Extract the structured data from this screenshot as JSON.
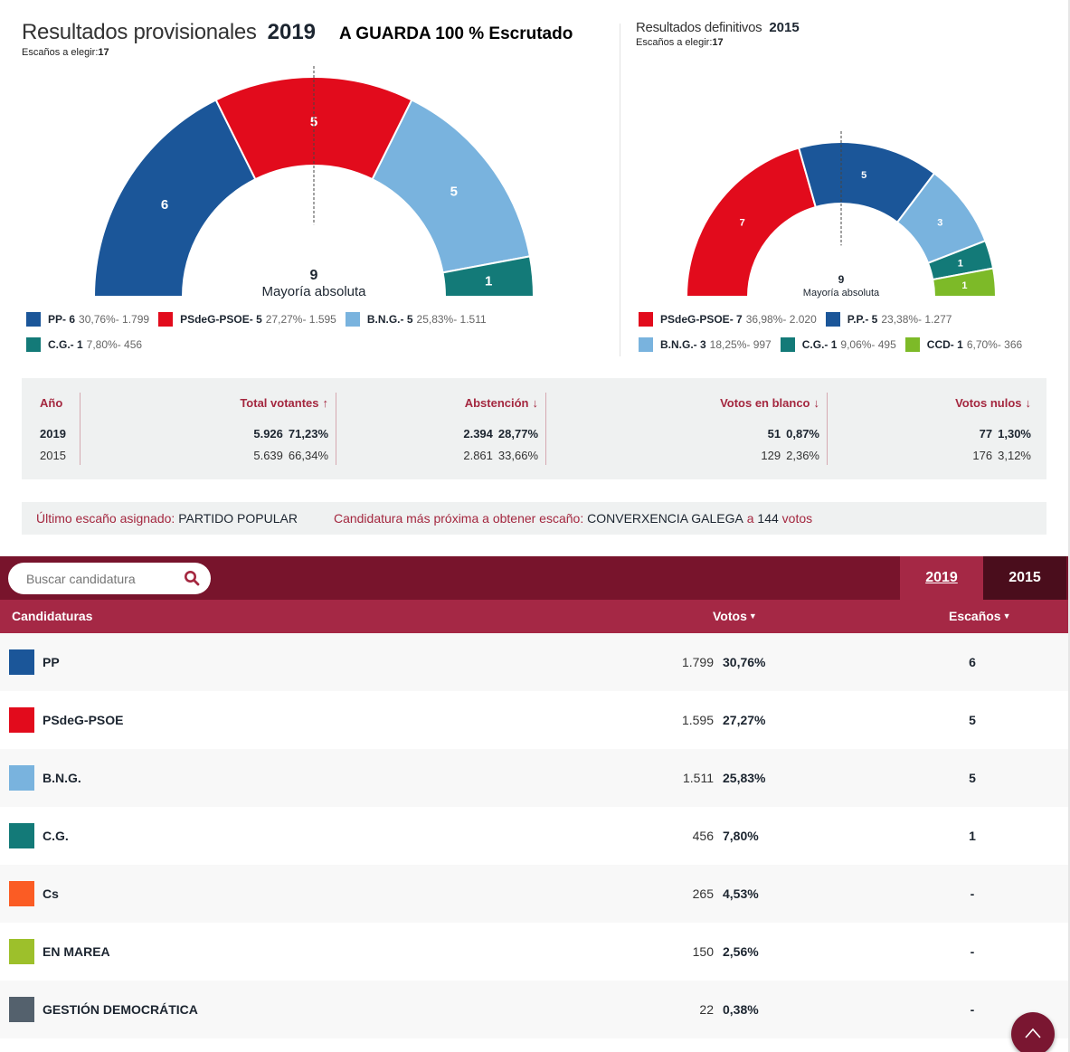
{
  "left": {
    "title": "Resultados provisionales",
    "year": "2019",
    "extra": "A GUARDA 100 % Escrutado",
    "seats_label": "Escaños a elegir:",
    "seats_total": "17"
  },
  "right": {
    "title": "Resultados definitivos",
    "year": "2015",
    "seats_label": "Escaños a elegir:",
    "seats_total": "17"
  },
  "chart_data": [
    {
      "type": "pie",
      "subtype": "semicircle-parliament",
      "title": "Resultados provisionales 2019",
      "total_seats": 17,
      "majority": 9,
      "majority_label": "Mayoría absoluta",
      "series": [
        {
          "name": "PP",
          "seats": 6,
          "pct": "30,76%",
          "votes": "1.799",
          "color": "#1b5699"
        },
        {
          "name": "PSdeG-PSOE",
          "seats": 5,
          "pct": "27,27%",
          "votes": "1.595",
          "color": "#e20b1c"
        },
        {
          "name": "B.N.G.",
          "seats": 5,
          "pct": "25,83%",
          "votes": "1.511",
          "color": "#79b3de"
        },
        {
          "name": "C.G.",
          "seats": 1,
          "pct": "7,80%",
          "votes": "456",
          "color": "#137a78"
        }
      ]
    },
    {
      "type": "pie",
      "subtype": "semicircle-parliament",
      "title": "Resultados definitivos 2015",
      "total_seats": 17,
      "majority": 9,
      "majority_label": "Mayoría absoluta",
      "series": [
        {
          "name": "PSdeG-PSOE",
          "seats": 7,
          "pct": "36,98%",
          "votes": "2.020",
          "color": "#e20b1c"
        },
        {
          "name": "P.P.",
          "seats": 5,
          "pct": "23,38%",
          "votes": "1.277",
          "color": "#1b5699"
        },
        {
          "name": "B.N.G.",
          "seats": 3,
          "pct": "18,25%",
          "votes": "997",
          "color": "#79b3de"
        },
        {
          "name": "C.G.",
          "seats": 1,
          "pct": "9,06%",
          "votes": "495",
          "color": "#137a78"
        },
        {
          "name": "CCD",
          "seats": 1,
          "pct": "6,70%",
          "votes": "366",
          "color": "#7dba28"
        }
      ]
    }
  ],
  "summary": {
    "headers": {
      "year": "Año",
      "total": "Total votantes",
      "abst": "Abstención",
      "blank": "Votos en blanco",
      "null": "Votos nulos"
    },
    "arrows": {
      "total": "↑",
      "abst": "↓",
      "blank": "↓",
      "null": "↓"
    },
    "rows": [
      {
        "year": "2019",
        "total_n": "5.926",
        "total_p": "71,23%",
        "abst_n": "2.394",
        "abst_p": "28,77%",
        "blank_n": "51",
        "blank_p": "0,87%",
        "null_n": "77",
        "null_p": "1,30%"
      },
      {
        "year": "2015",
        "total_n": "5.639",
        "total_p": "66,34%",
        "abst_n": "2.861",
        "abst_p": "33,66%",
        "blank_n": "129",
        "blank_p": "2,36%",
        "null_n": "176",
        "null_p": "3,12%"
      }
    ]
  },
  "info": {
    "last_seat_label": "Último escaño asignado:",
    "last_seat_value": "PARTIDO POPULAR",
    "next_label": "Candidatura más próxima a obtener escaño:",
    "next_value": "CONVERXENCIA GALEGA",
    "next_a": "a",
    "next_votes": "144",
    "next_votos": "votos"
  },
  "table": {
    "search_placeholder": "Buscar candidatura",
    "tabs": [
      "2019",
      "2015"
    ],
    "active_tab": "2019",
    "headers": {
      "candidaturas": "Candidaturas",
      "votos": "Votos",
      "escanos": "Escaños"
    },
    "sort_icon": "▼",
    "rows": [
      {
        "name": "PP",
        "votes": "1.799",
        "pct": "30,76%",
        "seats": "6",
        "color": "#1b5699"
      },
      {
        "name": "PSdeG-PSOE",
        "votes": "1.595",
        "pct": "27,27%",
        "seats": "5",
        "color": "#e20b1c"
      },
      {
        "name": "B.N.G.",
        "votes": "1.511",
        "pct": "25,83%",
        "seats": "5",
        "color": "#79b3de"
      },
      {
        "name": "C.G.",
        "votes": "456",
        "pct": "7,80%",
        "seats": "1",
        "color": "#137a78"
      },
      {
        "name": "Cs",
        "votes": "265",
        "pct": "4,53%",
        "seats": "-",
        "color": "#fb5c24"
      },
      {
        "name": "EN MAREA",
        "votes": "150",
        "pct": "2,56%",
        "seats": "-",
        "color": "#9dc02b"
      },
      {
        "name": "GESTIÓN DEMOCRÁTICA",
        "votes": "22",
        "pct": "0,38%",
        "seats": "-",
        "color": "#54616d"
      }
    ]
  }
}
